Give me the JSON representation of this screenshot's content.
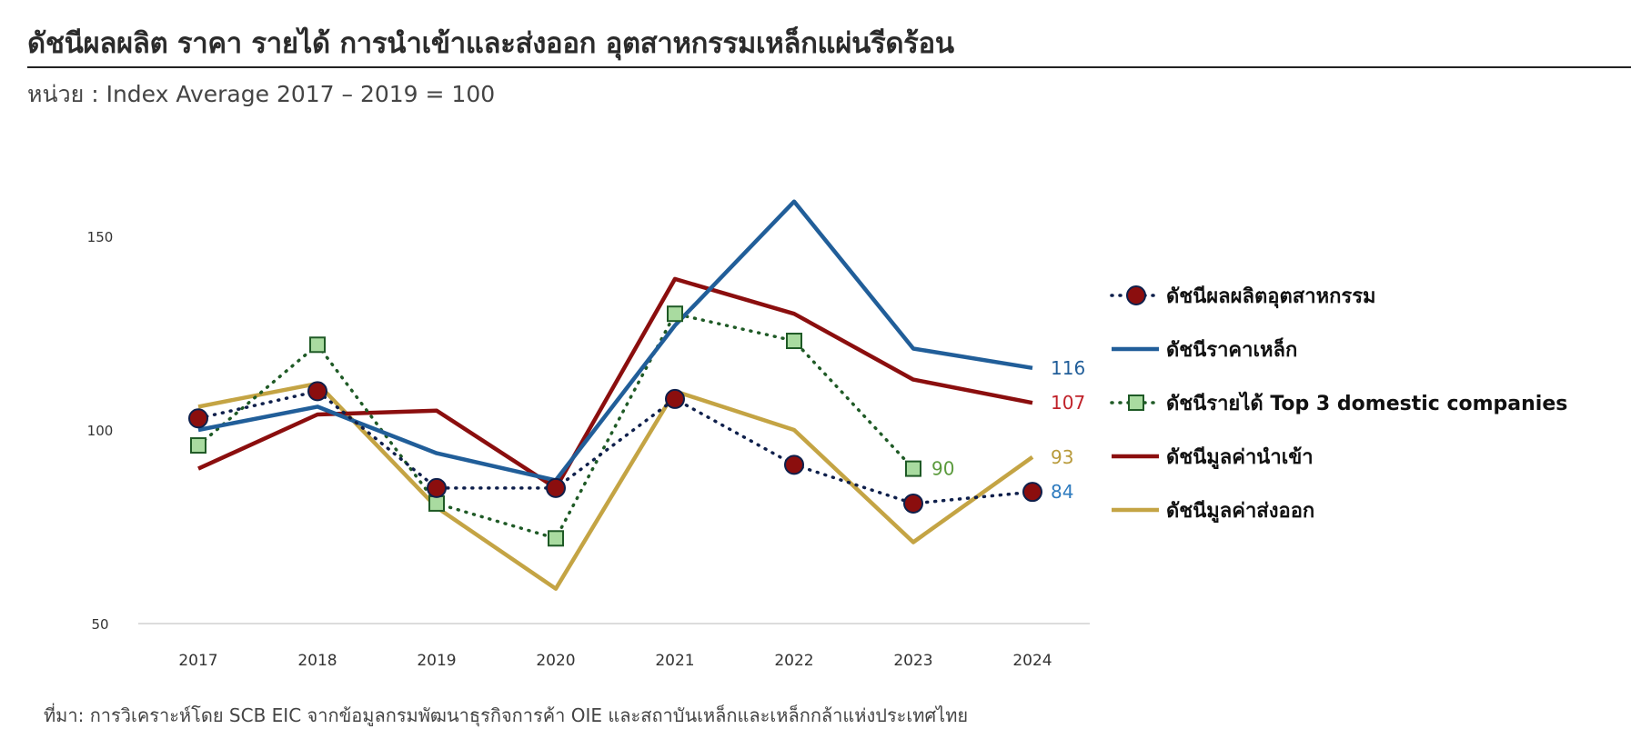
{
  "header": {
    "title": "ดัชนีผลผลิต ราคา รายได้ การนำเข้าและส่งออก อุตสาหกรรมเหล็กแผ่นรีดร้อน",
    "subtitle": "หน่วย : Index Average 2017 – 2019 = 100"
  },
  "footer": {
    "source": "ที่มา: การวิเคราะห์โดย SCB EIC จากข้อมูลกรมพัฒนาธุรกิจการค้า OIE และสถาบันเหล็กและเหล็กกล้าแห่งประเทศไทย"
  },
  "chart_data": {
    "type": "line",
    "categories": [
      "2017",
      "2018",
      "2019",
      "2020",
      "2021",
      "2022",
      "2023",
      "2024"
    ],
    "y_ticks": [
      "50",
      "100",
      "150"
    ],
    "ylim": [
      50,
      160
    ],
    "grid": false,
    "legend_position": "right",
    "series": [
      {
        "name": "ดัชนีผลผลิตอุตสาหกรรม",
        "color": "#0e1f4b",
        "marker_color": "#8b0e0e",
        "style": "dotted",
        "marker": "circle",
        "values": [
          103,
          110,
          85,
          85,
          108,
          91,
          81,
          84
        ],
        "end_label": "84",
        "end_label_color": "#2e7bbf"
      },
      {
        "name": "ดัชนีราคาเหล็ก",
        "color": "#215e99",
        "style": "solid",
        "marker": "none",
        "values": [
          100,
          106,
          94,
          87,
          127,
          159,
          121,
          116
        ],
        "end_label": "116",
        "end_label_color": "#215e99"
      },
      {
        "name": "ดัชนีรายได้ Top 3 domestic companies",
        "color": "#1f5a26",
        "marker_color": "#a9dba0",
        "style": "dotted",
        "marker": "square",
        "values": [
          96,
          122,
          81,
          72,
          130,
          123,
          90,
          null
        ],
        "end_label": "90",
        "end_label_color": "#5a9a3c"
      },
      {
        "name": "ดัชนีมูลค่านำเข้า",
        "color": "#8b0e0e",
        "style": "solid",
        "marker": "none",
        "values": [
          90,
          104,
          105,
          85,
          139,
          130,
          113,
          107
        ],
        "end_label": "107",
        "end_label_color": "#c0222a"
      },
      {
        "name": "ดัชนีมูลค่าส่งออก",
        "color": "#c4a444",
        "style": "solid",
        "marker": "none",
        "values": [
          106,
          112,
          80,
          59,
          110,
          100,
          71,
          93
        ],
        "end_label": "93",
        "end_label_color": "#b89a3a"
      }
    ]
  }
}
